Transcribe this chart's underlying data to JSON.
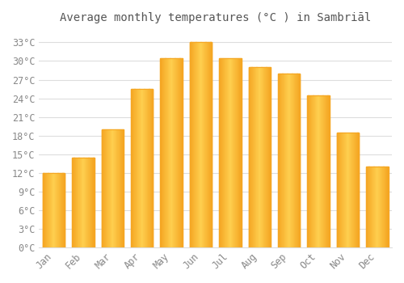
{
  "title": "Average monthly temperatures (°C ) in Sambriāl",
  "months": [
    "Jan",
    "Feb",
    "Mar",
    "Apr",
    "May",
    "Jun",
    "Jul",
    "Aug",
    "Sep",
    "Oct",
    "Nov",
    "Dec"
  ],
  "temperatures": [
    12,
    14.5,
    19,
    25.5,
    30.5,
    33,
    30.5,
    29,
    28,
    24.5,
    18.5,
    13
  ],
  "bar_color_center": "#FFD050",
  "bar_color_edge": "#F5A623",
  "background_color": "#FFFFFF",
  "grid_color": "#DDDDDD",
  "ytick_labels": [
    "0°C",
    "3°C",
    "6°C",
    "9°C",
    "12°C",
    "15°C",
    "18°C",
    "21°C",
    "24°C",
    "27°C",
    "30°C",
    "33°C"
  ],
  "ytick_values": [
    0,
    3,
    6,
    9,
    12,
    15,
    18,
    21,
    24,
    27,
    30,
    33
  ],
  "ylim": [
    0,
    35
  ],
  "title_fontsize": 10,
  "tick_fontsize": 8.5,
  "title_color": "#555555",
  "tick_color": "#888888",
  "bar_width": 0.75
}
